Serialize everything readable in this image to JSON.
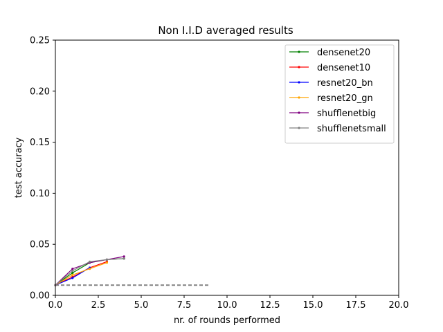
{
  "chart_data": {
    "type": "line",
    "title": "Non I.I.D averaged results",
    "xlabel": "nr. of rounds performed",
    "ylabel": "test accuracy",
    "xlim": [
      0,
      20
    ],
    "ylim": [
      0,
      0.25
    ],
    "xticks": [
      "0.0",
      "2.5",
      "5.0",
      "7.5",
      "10.0",
      "12.5",
      "15.0",
      "17.5",
      "20.0"
    ],
    "yticks": [
      "0.00",
      "0.05",
      "0.10",
      "0.15",
      "0.20",
      "0.25"
    ],
    "grid": false,
    "legend_position": "top-right",
    "series": [
      {
        "name": "densenet20",
        "color": "#008000",
        "x": [
          0,
          1,
          2,
          3,
          4
        ],
        "y": [
          0.01,
          0.022,
          0.032,
          0.035,
          0.036
        ]
      },
      {
        "name": "densenet10",
        "color": "#ff0000",
        "x": [
          0,
          1,
          2,
          3
        ],
        "y": [
          0.01,
          0.018,
          0.027,
          0.033
        ]
      },
      {
        "name": "resnet20_bn",
        "color": "#0000ff",
        "x": [
          0,
          1,
          2
        ],
        "y": [
          0.01,
          0.017,
          0.027
        ]
      },
      {
        "name": "resnet20_gn",
        "color": "#ffa500",
        "x": [
          0,
          1,
          2,
          3
        ],
        "y": [
          0.01,
          0.02,
          0.026,
          0.032
        ]
      },
      {
        "name": "shufflenetbig",
        "color": "#800080",
        "x": [
          0,
          1,
          2,
          3,
          4
        ],
        "y": [
          0.01,
          0.026,
          0.032,
          0.035,
          0.038
        ]
      },
      {
        "name": "shufflenetsmall",
        "color": "#808080",
        "x": [
          0,
          1,
          2,
          3,
          4
        ],
        "y": [
          0.01,
          0.024,
          0.033,
          0.035,
          0.036
        ]
      }
    ],
    "baselines": [
      {
        "color": "#808080",
        "x": [
          0,
          9
        ],
        "y": [
          0.01,
          0.01
        ],
        "style": "dashed"
      }
    ]
  }
}
